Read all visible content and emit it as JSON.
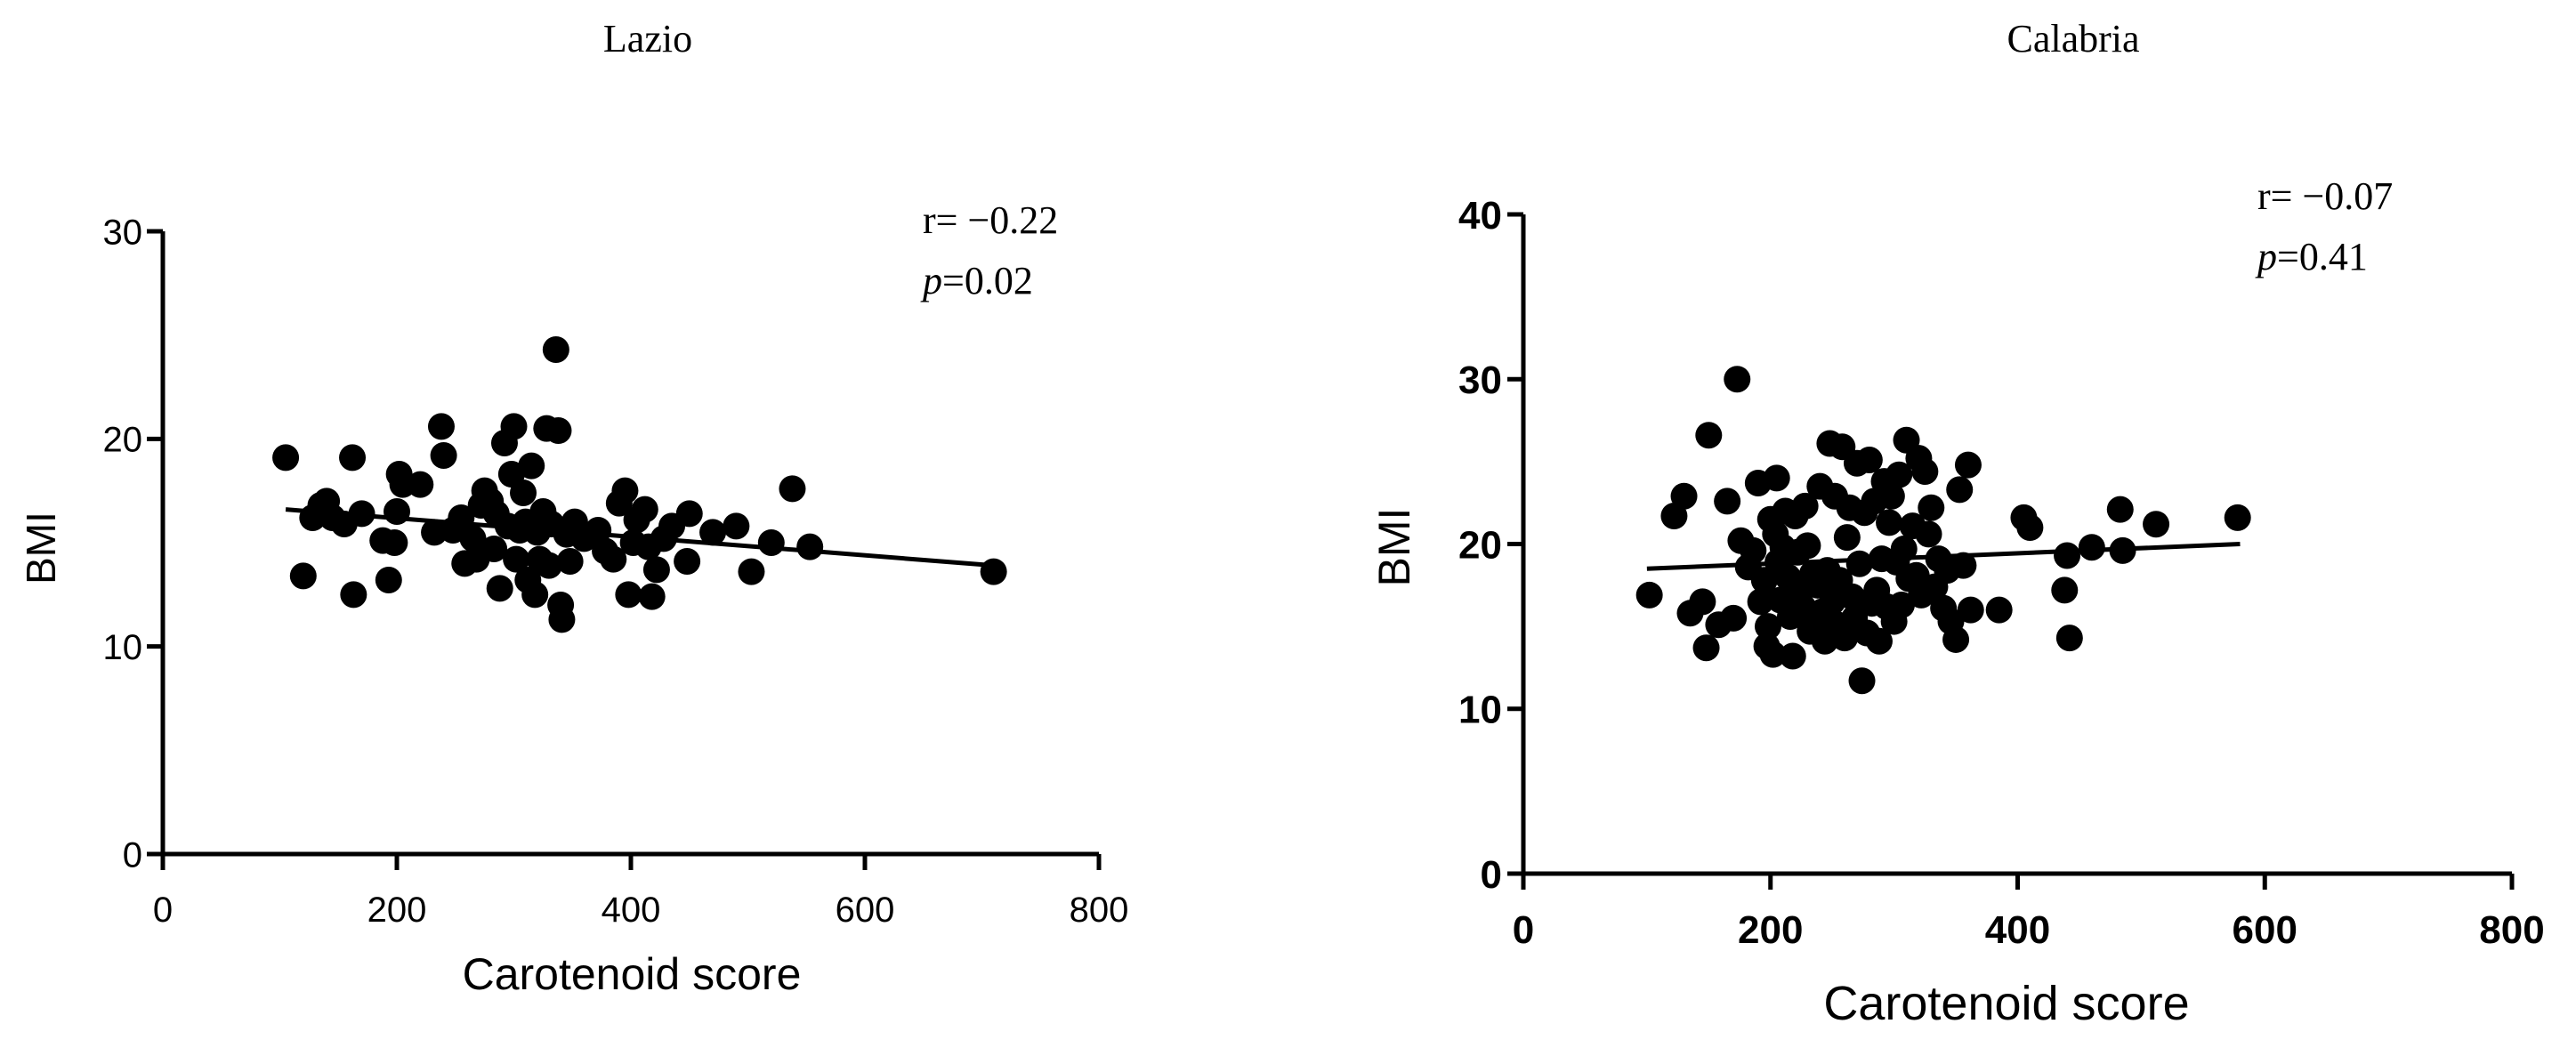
{
  "chart_data": [
    {
      "type": "scatter",
      "title": "Lazio",
      "xlabel": "Carotenoid score",
      "ylabel": "BMI",
      "xlim": [
        0,
        800
      ],
      "ylim": [
        0,
        30
      ],
      "xticks": [
        0,
        200,
        400,
        600,
        800
      ],
      "yticks": [
        0,
        10,
        20,
        30
      ],
      "grid": false,
      "annotation": {
        "r_label": "r= −0.22",
        "p_symbol": "p",
        "p_value": "=0.02"
      },
      "trend_line": {
        "x": [
          105,
          710
        ],
        "y": [
          16.6,
          13.9
        ]
      },
      "points": [
        [
          105,
          19.1
        ],
        [
          120,
          13.4
        ],
        [
          128,
          16.2
        ],
        [
          135,
          16.8
        ],
        [
          140,
          17.0
        ],
        [
          145,
          16.2
        ],
        [
          155,
          15.9
        ],
        [
          162,
          19.1
        ],
        [
          163,
          12.5
        ],
        [
          170,
          16.4
        ],
        [
          188,
          15.1
        ],
        [
          193,
          13.2
        ],
        [
          198,
          15.0
        ],
        [
          200,
          16.5
        ],
        [
          202,
          18.3
        ],
        [
          205,
          17.8
        ],
        [
          220,
          17.8
        ],
        [
          232,
          15.5
        ],
        [
          238,
          20.6
        ],
        [
          240,
          19.2
        ],
        [
          248,
          15.6
        ],
        [
          255,
          16.2
        ],
        [
          258,
          14.0
        ],
        [
          265,
          15.2
        ],
        [
          268,
          14.2
        ],
        [
          272,
          16.8
        ],
        [
          275,
          17.5
        ],
        [
          280,
          17.0
        ],
        [
          283,
          14.7
        ],
        [
          285,
          16.4
        ],
        [
          288,
          12.8
        ],
        [
          292,
          19.8
        ],
        [
          295,
          15.8
        ],
        [
          298,
          18.3
        ],
        [
          300,
          20.6
        ],
        [
          302,
          14.2
        ],
        [
          305,
          15.6
        ],
        [
          308,
          17.4
        ],
        [
          310,
          16.0
        ],
        [
          312,
          13.2
        ],
        [
          315,
          18.7
        ],
        [
          318,
          12.5
        ],
        [
          320,
          15.5
        ],
        [
          322,
          14.2
        ],
        [
          325,
          16.5
        ],
        [
          328,
          20.5
        ],
        [
          330,
          13.9
        ],
        [
          332,
          15.9
        ],
        [
          336,
          24.3
        ],
        [
          338,
          20.4
        ],
        [
          340,
          12.0
        ],
        [
          341,
          11.3
        ],
        [
          345,
          15.4
        ],
        [
          348,
          14.1
        ],
        [
          352,
          16.0
        ],
        [
          360,
          15.2
        ],
        [
          372,
          15.6
        ],
        [
          378,
          14.6
        ],
        [
          385,
          14.2
        ],
        [
          390,
          16.9
        ],
        [
          395,
          17.5
        ],
        [
          398,
          12.5
        ],
        [
          402,
          15.0
        ],
        [
          405,
          16.1
        ],
        [
          412,
          16.6
        ],
        [
          415,
          14.8
        ],
        [
          418,
          12.4
        ],
        [
          422,
          13.7
        ],
        [
          428,
          15.2
        ],
        [
          435,
          15.8
        ],
        [
          448,
          14.1
        ],
        [
          450,
          16.4
        ],
        [
          470,
          15.5
        ],
        [
          490,
          15.8
        ],
        [
          503,
          13.6
        ],
        [
          520,
          15.0
        ],
        [
          538,
          17.6
        ],
        [
          553,
          14.8
        ],
        [
          710,
          13.6
        ]
      ]
    },
    {
      "type": "scatter",
      "title": "Calabria",
      "xlabel": "Carotenoid score",
      "ylabel": "BMI",
      "xlim": [
        0,
        800
      ],
      "ylim": [
        0,
        40
      ],
      "xticks": [
        0,
        200,
        400,
        600,
        800
      ],
      "yticks": [
        0,
        10,
        20,
        30,
        40
      ],
      "grid": false,
      "annotation": {
        "r_label": "r= −0.07",
        "p_symbol": "p",
        "p_value": "=0.41"
      },
      "trend_line": {
        "x": [
          100,
          580
        ],
        "y": [
          18.5,
          20.0
        ]
      },
      "points": [
        [
          102,
          16.9
        ],
        [
          122,
          21.7
        ],
        [
          130,
          22.9
        ],
        [
          135,
          15.8
        ],
        [
          145,
          16.5
        ],
        [
          148,
          13.7
        ],
        [
          150,
          26.6
        ],
        [
          158,
          15.1
        ],
        [
          165,
          22.6
        ],
        [
          170,
          15.5
        ],
        [
          173,
          30.0
        ],
        [
          176,
          20.2
        ],
        [
          182,
          18.6
        ],
        [
          186,
          19.6
        ],
        [
          190,
          23.7
        ],
        [
          192,
          16.5
        ],
        [
          195,
          17.8
        ],
        [
          197,
          13.8
        ],
        [
          198,
          15.0
        ],
        [
          200,
          21.5
        ],
        [
          202,
          13.3
        ],
        [
          204,
          20.6
        ],
        [
          205,
          24.0
        ],
        [
          206,
          18.9
        ],
        [
          208,
          16.6
        ],
        [
          210,
          19.8
        ],
        [
          212,
          22.0
        ],
        [
          214,
          18.0
        ],
        [
          216,
          15.6
        ],
        [
          218,
          13.2
        ],
        [
          220,
          21.7
        ],
        [
          222,
          19.5
        ],
        [
          224,
          17.3
        ],
        [
          226,
          16.2
        ],
        [
          228,
          22.3
        ],
        [
          230,
          19.9
        ],
        [
          232,
          14.7
        ],
        [
          234,
          18.2
        ],
        [
          236,
          15.4
        ],
        [
          238,
          17.5
        ],
        [
          240,
          23.5
        ],
        [
          242,
          15.9
        ],
        [
          244,
          14.1
        ],
        [
          246,
          18.4
        ],
        [
          248,
          26.1
        ],
        [
          250,
          16.5
        ],
        [
          252,
          22.9
        ],
        [
          254,
          15.1
        ],
        [
          256,
          17.8
        ],
        [
          258,
          25.9
        ],
        [
          260,
          14.3
        ],
        [
          262,
          20.4
        ],
        [
          264,
          22.2
        ],
        [
          266,
          16.8
        ],
        [
          268,
          15.5
        ],
        [
          270,
          24.9
        ],
        [
          272,
          18.8
        ],
        [
          274,
          11.7
        ],
        [
          276,
          21.9
        ],
        [
          278,
          14.6
        ],
        [
          280,
          25.1
        ],
        [
          282,
          16.4
        ],
        [
          284,
          22.6
        ],
        [
          286,
          17.2
        ],
        [
          288,
          14.1
        ],
        [
          290,
          19.1
        ],
        [
          292,
          23.8
        ],
        [
          294,
          16.2
        ],
        [
          296,
          21.3
        ],
        [
          298,
          22.9
        ],
        [
          300,
          15.3
        ],
        [
          302,
          18.9
        ],
        [
          304,
          24.2
        ],
        [
          306,
          16.3
        ],
        [
          308,
          19.7
        ],
        [
          310,
          26.3
        ],
        [
          312,
          17.9
        ],
        [
          315,
          21.1
        ],
        [
          318,
          18.1
        ],
        [
          320,
          25.2
        ],
        [
          322,
          16.9
        ],
        [
          325,
          24.4
        ],
        [
          328,
          20.6
        ],
        [
          330,
          22.2
        ],
        [
          333,
          17.4
        ],
        [
          336,
          19.1
        ],
        [
          340,
          16.1
        ],
        [
          343,
          18.4
        ],
        [
          346,
          15.3
        ],
        [
          350,
          14.2
        ],
        [
          353,
          23.3
        ],
        [
          356,
          18.7
        ],
        [
          360,
          24.8
        ],
        [
          362,
          16.0
        ],
        [
          385,
          16.0
        ],
        [
          405,
          21.6
        ],
        [
          410,
          21.0
        ],
        [
          438,
          17.2
        ],
        [
          440,
          19.3
        ],
        [
          442,
          14.3
        ],
        [
          460,
          19.8
        ],
        [
          483,
          22.1
        ],
        [
          485,
          19.6
        ],
        [
          512,
          21.2
        ],
        [
          578,
          21.6
        ]
      ]
    }
  ]
}
